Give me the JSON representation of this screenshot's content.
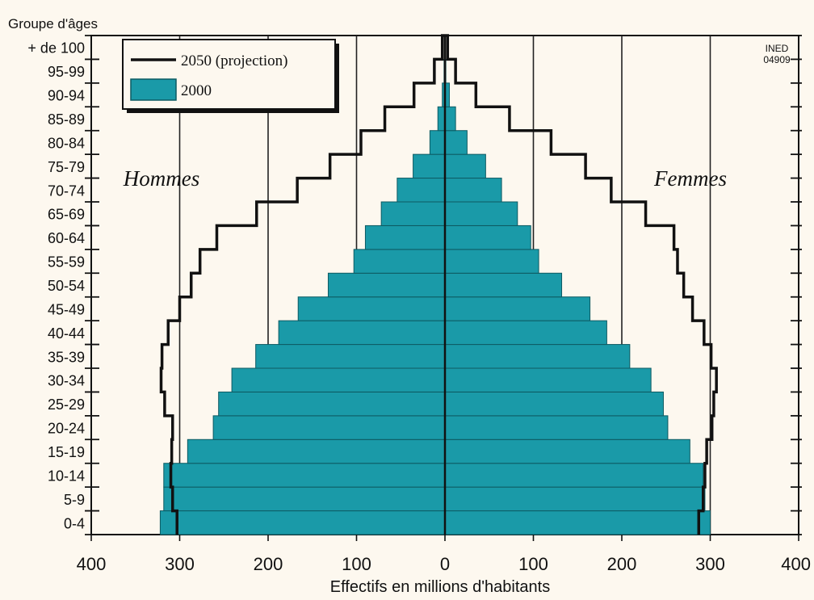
{
  "chart_data": {
    "type": "bar",
    "subtype": "population-pyramid",
    "y_axis_title": "Groupe d'âges",
    "xlabel": "Effectifs en millions d'habitants",
    "x_tick_labels": [
      "400",
      "300",
      "200",
      "100",
      "0",
      "100",
      "200",
      "300",
      "400"
    ],
    "x_tick_values": [
      -400,
      -300,
      -200,
      -100,
      0,
      100,
      200,
      300,
      400
    ],
    "xlim": [
      -400,
      400
    ],
    "grid": "vertical",
    "categories": [
      "0-4",
      "5-9",
      "10-14",
      "15-19",
      "20-24",
      "25-29",
      "30-34",
      "35-39",
      "40-44",
      "45-49",
      "50-54",
      "55-59",
      "60-64",
      "65-69",
      "70-74",
      "75-79",
      "80-84",
      "85-89",
      "90-94",
      "95-99",
      "+ de 100"
    ],
    "label_left": "Hommes",
    "label_right": "Femmes",
    "source_label": [
      "INED",
      "04909"
    ],
    "legend_position": "top-left",
    "colors": {
      "bars": "#1a9aa8",
      "bar_edge": "#0d5a62",
      "line": "#111111",
      "grid": "#222222",
      "background": "#fdf8ef"
    },
    "series": [
      {
        "name": "2000",
        "style": "bars",
        "men": [
          322,
          318,
          318,
          291,
          262,
          256,
          241,
          214,
          188,
          166,
          132,
          103,
          90,
          72,
          54,
          36,
          17,
          8,
          3,
          1,
          0
        ],
        "women": [
          300,
          294,
          292,
          277,
          252,
          247,
          233,
          209,
          183,
          164,
          132,
          106,
          97,
          82,
          64,
          46,
          25,
          12,
          5,
          1,
          0
        ]
      },
      {
        "name": "2050 (projection)",
        "style": "step-line",
        "men": [
          303,
          308,
          310,
          309,
          308,
          317,
          321,
          320,
          313,
          300,
          287,
          277,
          258,
          213,
          167,
          130,
          95,
          68,
          35,
          12,
          3
        ],
        "women": [
          287,
          292,
          294,
          296,
          302,
          304,
          307,
          301,
          293,
          280,
          270,
          263,
          259,
          227,
          188,
          159,
          120,
          73,
          35,
          12,
          3
        ]
      }
    ]
  }
}
